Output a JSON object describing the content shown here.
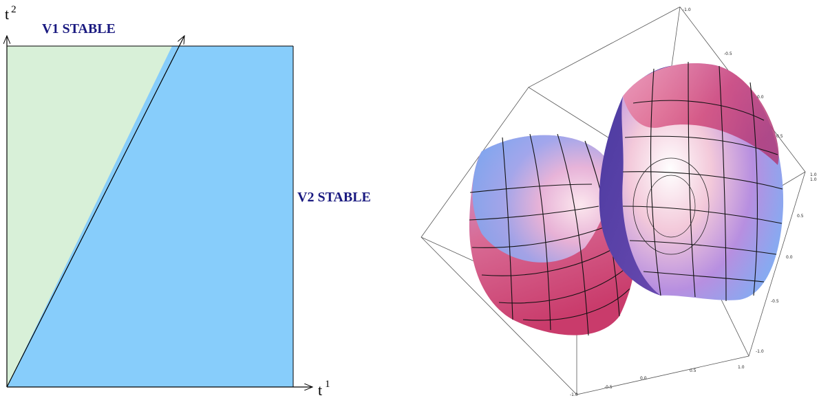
{
  "left_panel": {
    "x_axis": {
      "symbol": "t",
      "index": "1"
    },
    "y_axis": {
      "symbol": "t",
      "index": "2"
    },
    "regions": [
      {
        "label": "V1 STABLE",
        "color": "#d8f0d8"
      },
      {
        "label": "V2 STABLE",
        "color": "#87cdfb"
      }
    ],
    "label_color": "#1a1a80"
  },
  "right_panel": {
    "axis_ticks": {
      "top": [
        "-1.0",
        "-0.5",
        "0.0",
        "0.5",
        "1.0"
      ],
      "right": [
        "1.0",
        "0.5",
        "0.0",
        "-0.5",
        "-1.0"
      ],
      "bottom": [
        "-1.0",
        "-0.5",
        "0.0",
        "0.5",
        "1.0"
      ]
    },
    "surface_colors": {
      "blue": "#7aa6f0",
      "pink": "#d04a7a",
      "highlight": "#fbe3ee",
      "purple": "#6a3aa8"
    }
  }
}
